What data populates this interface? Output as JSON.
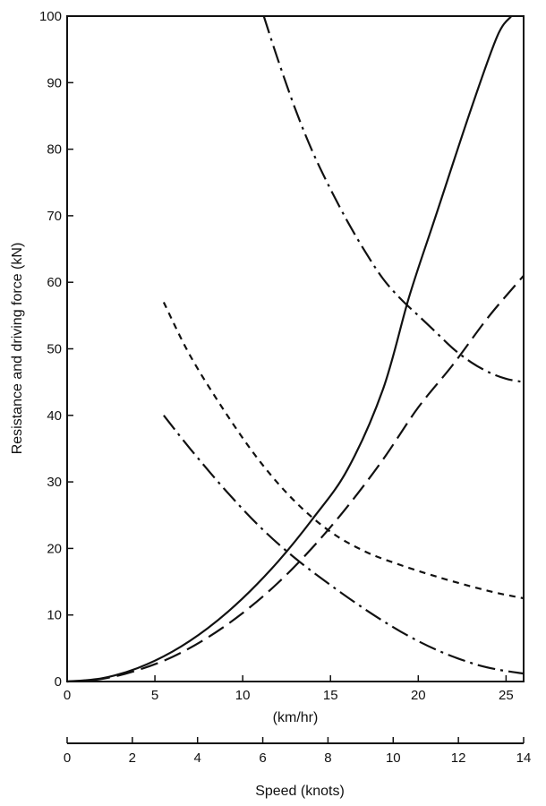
{
  "chart_data": {
    "type": "line",
    "ylabel": "Resistance and driving force (kN)",
    "xlabel": "(km/hr)",
    "secondary_xlabel": "Speed (knots)",
    "xlim": [
      0,
      26
    ],
    "ylim": [
      0,
      100
    ],
    "secondary_xlim": [
      0,
      14
    ],
    "x_ticks": [
      0,
      5,
      10,
      15,
      20,
      25
    ],
    "y_ticks": [
      0,
      10,
      20,
      30,
      40,
      50,
      60,
      70,
      80,
      90,
      100
    ],
    "secondary_x_ticks": [
      0,
      2,
      4,
      6,
      8,
      10,
      12,
      14
    ],
    "grid": false,
    "series": [
      {
        "style": "solid",
        "x": [
          0,
          2,
          4,
          6,
          8,
          10,
          12,
          14,
          16,
          18,
          19.5,
          21,
          23,
          24.5,
          25.3
        ],
        "y": [
          0,
          0.5,
          2,
          4.5,
          8,
          12.5,
          18,
          24.5,
          32,
          44,
          58,
          70,
          86,
          97,
          100
        ]
      },
      {
        "style": "long-dash",
        "x": [
          0,
          2,
          4,
          6,
          8,
          10,
          12,
          14,
          16,
          18,
          20,
          22,
          24,
          26
        ],
        "y": [
          0,
          0.4,
          1.7,
          3.7,
          6.6,
          10.3,
          14.8,
          20.2,
          26.4,
          33.4,
          41.2,
          47.7,
          54.8,
          61
        ]
      },
      {
        "style": "dash-dot",
        "x": [
          11.2,
          12,
          13,
          14,
          15,
          16,
          17,
          18,
          19,
          20,
          21,
          22,
          23,
          24,
          25,
          26
        ],
        "y": [
          100,
          93.5,
          86,
          79.5,
          74,
          69,
          64.5,
          60.5,
          57.5,
          55,
          52.5,
          50,
          48,
          46.5,
          45.5,
          45
        ]
      },
      {
        "style": "short-dash",
        "x": [
          5.5,
          7,
          9,
          11,
          13,
          15,
          17,
          19,
          21,
          23,
          24.5,
          26
        ],
        "y": [
          57,
          49,
          40.5,
          33,
          27,
          22.5,
          19.5,
          17.5,
          15.8,
          14.3,
          13.3,
          12.5
        ]
      },
      {
        "style": "dash-dot",
        "x": [
          5.5,
          7,
          9,
          11,
          13,
          15,
          17,
          19,
          21,
          23,
          24.5,
          26
        ],
        "y": [
          40,
          35,
          28.8,
          23.2,
          18.5,
          14.5,
          10.8,
          7.5,
          4.8,
          2.8,
          1.8,
          1.2
        ]
      }
    ]
  }
}
